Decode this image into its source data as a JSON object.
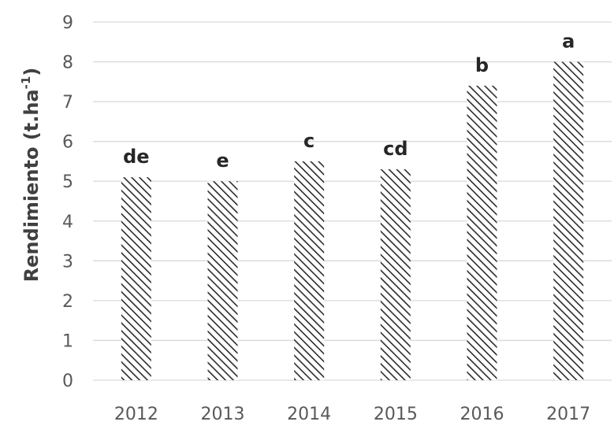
{
  "chart_data": {
    "type": "bar",
    "categories": [
      "2012",
      "2013",
      "2014",
      "2015",
      "2016",
      "2017"
    ],
    "values": [
      5.1,
      5.0,
      5.5,
      5.3,
      7.4,
      8.0
    ],
    "significance_letters": [
      "de",
      "e",
      "c",
      "cd",
      "b",
      "a"
    ],
    "title": "",
    "xlabel": "",
    "ylabel": "Rendimiento (t.ha⁻¹)",
    "ylabel_parts": {
      "main": "Rendimiento (t.ha",
      "sup": "-1",
      "close": ")"
    },
    "ylim": [
      0,
      9
    ],
    "yticks": [
      "0",
      "1",
      "2",
      "3",
      "4",
      "5",
      "6",
      "7",
      "8",
      "9"
    ],
    "grid": true,
    "legend": "none",
    "bar_fill": "diagonal-hatch",
    "colors": {
      "hatch": "#2b2b2b",
      "grid": "#d9d9d9",
      "axis_text": "#595959"
    }
  }
}
